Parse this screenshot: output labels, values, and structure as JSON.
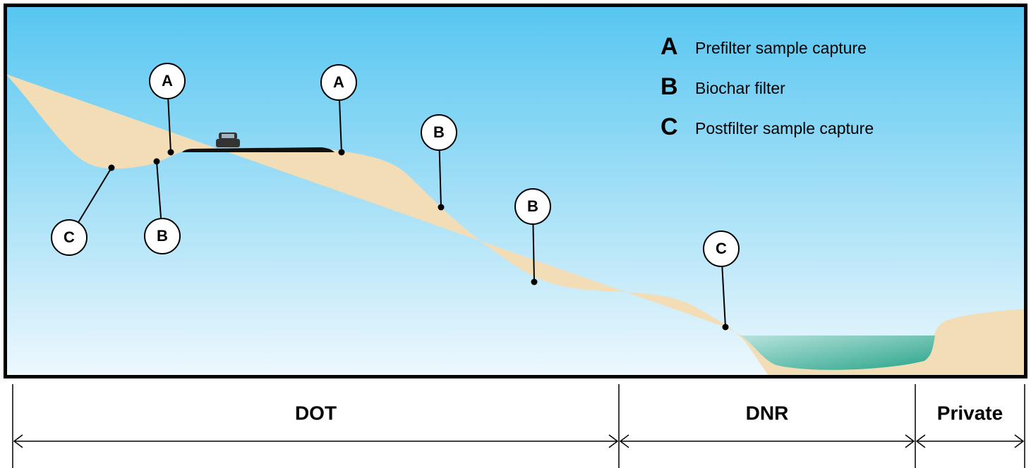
{
  "legend": [
    {
      "key": "A",
      "label": "Prefilter sample capture"
    },
    {
      "key": "B",
      "label": "Biochar filter"
    },
    {
      "key": "C",
      "label": "Postfilter sample capture"
    }
  ],
  "markers": [
    "A",
    "A",
    "B",
    "B",
    "B",
    "C",
    "C"
  ],
  "sections": [
    "DOT",
    "DNR",
    "Private"
  ]
}
